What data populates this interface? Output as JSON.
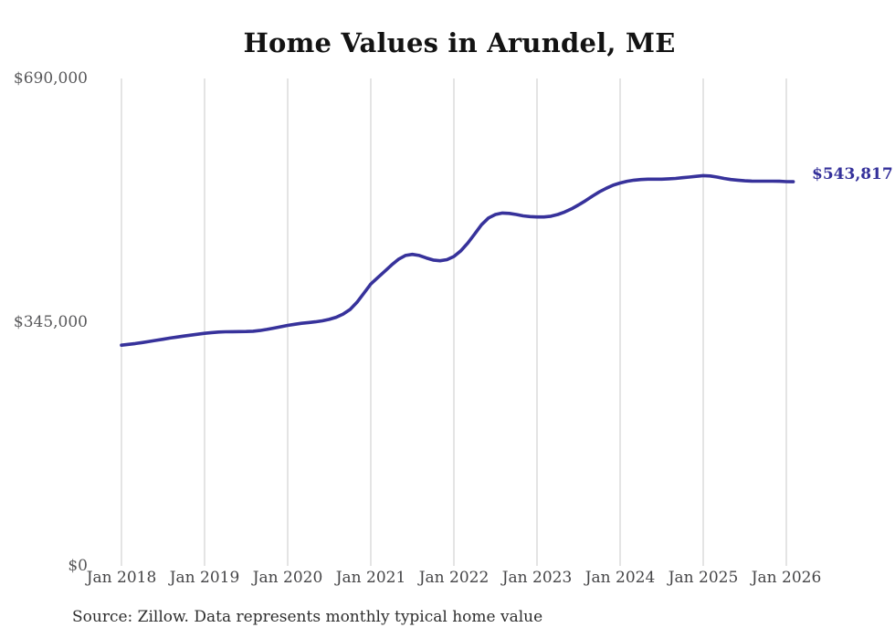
{
  "chart": {
    "title": "Home Values in Arundel, ME",
    "final_value_label": "$543,817",
    "source": "Source: Zillow. Data represents monthly typical home value"
  },
  "colors": {
    "line": "#37329b",
    "final_label": "#34309a",
    "grid": "#c8c8c8"
  },
  "chart_data": {
    "type": "line",
    "title": "Home Values in Arundel, ME",
    "x_start": "2018-01",
    "x_interval": "month",
    "x_tick_labels": [
      "Jan 2018",
      "Jan 2019",
      "Jan 2020",
      "Jan 2021",
      "Jan 2022",
      "Jan 2023",
      "Jan 2024",
      "Jan 2025",
      "Jan 2026"
    ],
    "y_ticks": [
      0,
      345000,
      690000
    ],
    "y_tick_labels": [
      "$0",
      "$345,000",
      "$690,000"
    ],
    "ylim": [
      0,
      690000
    ],
    "grid": "vertical-only",
    "legend": "none",
    "final_value": 543817,
    "series": [
      {
        "name": "Monthly typical home value",
        "values": [
          312500,
          313600,
          314800,
          316200,
          317700,
          319300,
          320900,
          322500,
          324000,
          325400,
          326700,
          328000,
          329300,
          330300,
          331000,
          331400,
          331600,
          331700,
          331800,
          332200,
          333200,
          334800,
          336600,
          338600,
          340500,
          342000,
          343500,
          344500,
          345500,
          347000,
          349000,
          352000,
          356500,
          363000,
          373000,
          386000,
          399000,
          408000,
          417000,
          426000,
          434000,
          439500,
          441000,
          439500,
          436000,
          433000,
          432000,
          433500,
          438000,
          446000,
          457000,
          470000,
          483000,
          492500,
          497500,
          499500,
          499000,
          497500,
          495500,
          494500,
          494000,
          494000,
          495000,
          497500,
          501000,
          505500,
          511000,
          517000,
          523500,
          529500,
          534500,
          539000,
          542000,
          544500,
          546000,
          547000,
          547500,
          547500,
          547500,
          548000,
          548500,
          549500,
          550500,
          551500,
          552500,
          552000,
          550500,
          548500,
          547000,
          546000,
          545200,
          544800,
          544600,
          544600,
          544600,
          544500,
          544000,
          543817
        ]
      }
    ]
  }
}
